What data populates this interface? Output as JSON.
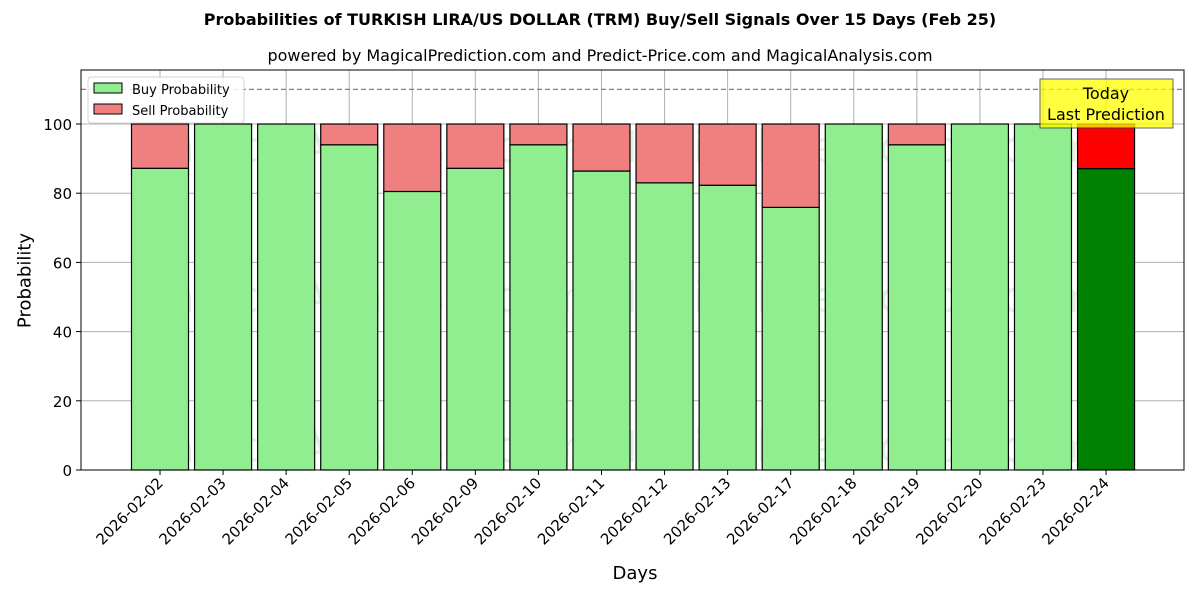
{
  "chart_data": {
    "type": "bar",
    "stacked": true,
    "title": "Probabilities of TURKISH LIRA/US DOLLAR (TRM) Buy/Sell Signals Over 15 Days (Feb 25)",
    "subtitle": "powered by MagicalPrediction.com and Predict-Price.com and MagicalAnalysis.com",
    "xlabel": "Days",
    "ylabel": "Probability",
    "ylim": [
      0,
      115
    ],
    "yticks": [
      0,
      20,
      40,
      60,
      80,
      100
    ],
    "grid": true,
    "legend_position": "upper left",
    "reference_line": {
      "y": 110,
      "style": "dashed"
    },
    "annotation": "Today\nLast Prediction",
    "categories": [
      "2026-02-02",
      "2026-02-03",
      "2026-02-04",
      "2026-02-05",
      "2026-02-06",
      "2026-02-09",
      "2026-02-10",
      "2026-02-11",
      "2026-02-12",
      "2026-02-13",
      "2026-02-17",
      "2026-02-18",
      "2026-02-19",
      "2026-02-20",
      "2026-02-23",
      "2026-02-24"
    ],
    "series": [
      {
        "name": "Buy Probability",
        "color": "#90ee90",
        "values": [
          87.2,
          100,
          100,
          94.0,
          80.5,
          87.2,
          94.0,
          86.4,
          83.0,
          82.3,
          75.9,
          100,
          94.0,
          100,
          100,
          87.1
        ]
      },
      {
        "name": "Sell Probability",
        "color": "#f08080",
        "values": [
          12.8,
          0,
          0,
          6.0,
          19.5,
          12.8,
          6.0,
          13.6,
          17.0,
          17.7,
          24.1,
          0,
          6.0,
          0,
          0,
          12.9
        ]
      }
    ],
    "highlight_last": {
      "buy_color": "#008000",
      "sell_color": "#ff0000"
    }
  },
  "labels": {
    "title": "Probabilities of TURKISH LIRA/US DOLLAR (TRM) Buy/Sell Signals Over 15 Days (Feb 25)",
    "subtitle": "powered by MagicalPrediction.com and Predict-Price.com and MagicalAnalysis.com",
    "xlabel": "Days",
    "ylabel": "Probability",
    "legend_buy": "Buy Probability",
    "legend_sell": "Sell Probability",
    "annot_line1": "Today",
    "annot_line2": "Last Prediction",
    "watermark1": "MagicalAnalysis.com",
    "watermark2": "MagicalPrediction.com"
  }
}
